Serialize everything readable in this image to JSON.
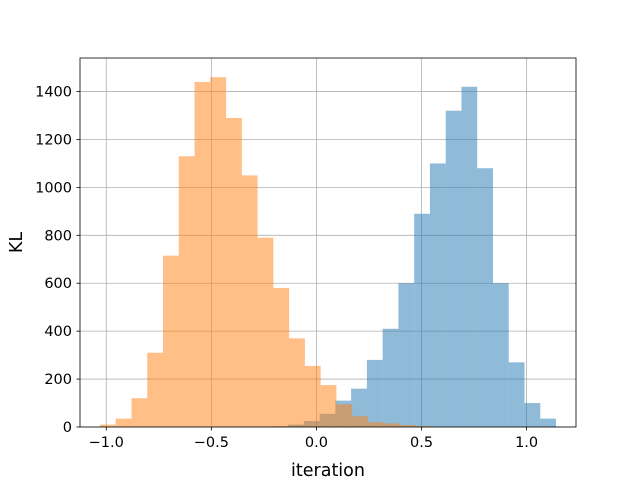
{
  "chart_data": {
    "type": "histogram",
    "xlabel": "iteration",
    "ylabel": "KL",
    "xlim": [
      -1.125,
      1.235
    ],
    "ylim": [
      0,
      1540
    ],
    "x_ticks": [
      -1.0,
      -0.5,
      0.0,
      0.5,
      1.0
    ],
    "x_tick_labels": [
      "−1.0",
      "−0.5",
      "0.0",
      "0.5",
      "1.0"
    ],
    "y_ticks": [
      0,
      200,
      400,
      600,
      800,
      1000,
      1200,
      1400
    ],
    "y_tick_labels": [
      "0",
      "200",
      "400",
      "600",
      "800",
      "1000",
      "1200",
      "1400"
    ],
    "grid": true,
    "series": [
      {
        "color": "#1f77b4",
        "alpha": 0.5,
        "bins": [
          -0.21,
          -0.135,
          -0.06,
          0.015,
          0.09,
          0.165,
          0.24,
          0.315,
          0.39,
          0.465,
          0.54,
          0.615,
          0.69,
          0.765,
          0.84,
          0.915,
          0.99,
          1.065,
          1.14
        ],
        "counts": [
          3,
          10,
          25,
          55,
          110,
          160,
          280,
          410,
          600,
          890,
          1100,
          1320,
          1420,
          1080,
          600,
          270,
          100,
          35
        ]
      },
      {
        "color": "#ff7f0e",
        "alpha": 0.5,
        "bins": [
          -1.03,
          -0.955,
          -0.88,
          -0.805,
          -0.73,
          -0.655,
          -0.58,
          -0.505,
          -0.43,
          -0.355,
          -0.28,
          -0.205,
          -0.13,
          -0.055,
          0.02,
          0.095,
          0.17,
          0.245,
          0.32,
          0.395,
          0.47,
          0.545
        ],
        "counts": [
          10,
          35,
          120,
          310,
          715,
          1130,
          1440,
          1460,
          1290,
          1050,
          790,
          580,
          370,
          255,
          175,
          95,
          45,
          20,
          15,
          8,
          4
        ]
      }
    ]
  }
}
